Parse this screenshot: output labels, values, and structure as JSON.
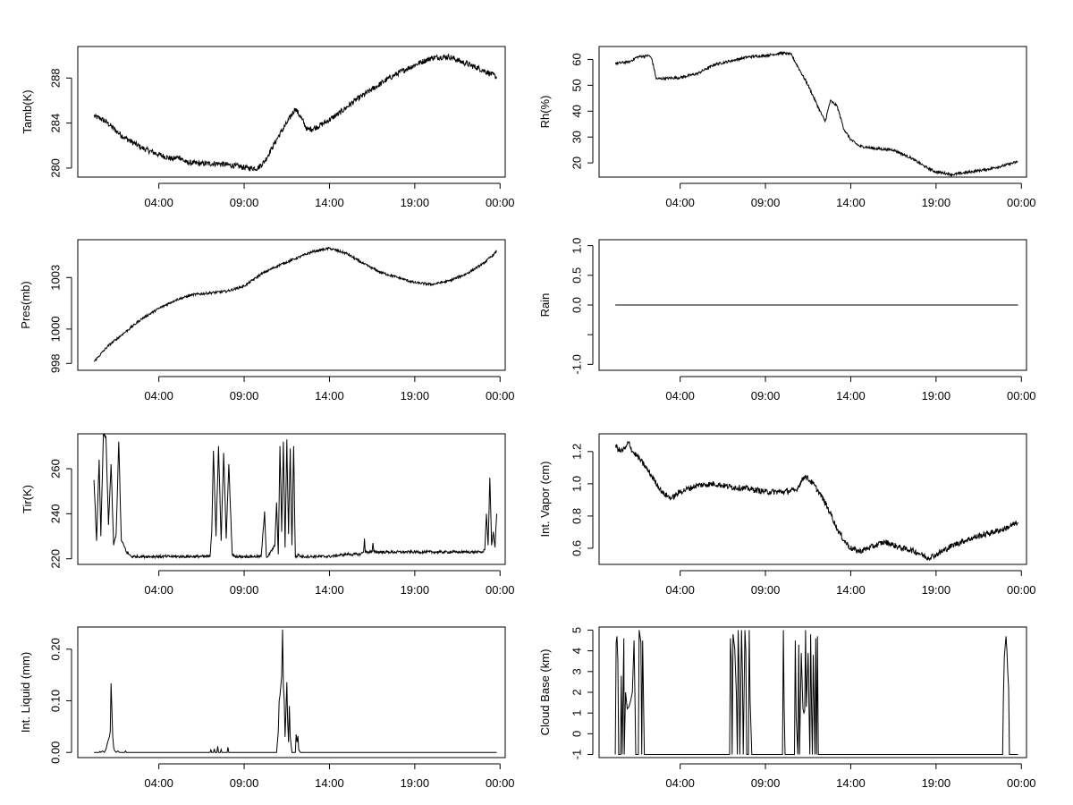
{
  "chart_data": [
    {
      "id": "tamb",
      "type": "line",
      "ylabel": "Tamb(K)",
      "ylim": [
        279.2,
        290.8
      ],
      "yticks": [
        280,
        284,
        288
      ],
      "xlim": [
        -0.75,
        24.3
      ],
      "xticks": [
        4,
        9,
        14,
        19,
        24
      ],
      "xticklabels": [
        "04:00",
        "09:00",
        "14:00",
        "19:00",
        "00:00"
      ],
      "series": [
        {
          "name": "Tamb",
          "noise": 0.25,
          "x": [
            0.2,
            0.6,
            1.0,
            1.5,
            2.0,
            3.0,
            4.0,
            4.8,
            5.2,
            5.6,
            6.5,
            7.5,
            8.5,
            9.2,
            9.8,
            10.2,
            10.6,
            11.0,
            11.5,
            12.0,
            12.4,
            12.7,
            13.2,
            13.8,
            14.5,
            15.5,
            16.5,
            17.5,
            18.5,
            19.2,
            20.0,
            21.0,
            22.0,
            23.0,
            23.8
          ],
          "y": [
            284.6,
            284.4,
            284.0,
            283.3,
            282.7,
            281.8,
            281.2,
            280.8,
            281.0,
            280.5,
            280.4,
            280.4,
            280.2,
            280.0,
            280.0,
            280.6,
            281.7,
            282.8,
            284.0,
            285.3,
            284.3,
            283.4,
            283.6,
            284.1,
            284.8,
            286.0,
            287.0,
            288.0,
            288.8,
            289.3,
            289.8,
            289.9,
            289.3,
            288.7,
            288.1
          ]
        }
      ]
    },
    {
      "id": "rh",
      "type": "line",
      "ylabel": "Rh(%)",
      "ylim": [
        14.5,
        65
      ],
      "yticks": [
        20,
        30,
        40,
        50,
        60
      ],
      "xlim": [
        -0.75,
        24.3
      ],
      "xticks": [
        4,
        9,
        14,
        19,
        24
      ],
      "xticklabels": [
        "04:00",
        "09:00",
        "14:00",
        "19:00",
        "00:00"
      ],
      "series": [
        {
          "name": "Rh",
          "noise": 0.5,
          "x": [
            0.2,
            1.0,
            1.5,
            2.2,
            2.35,
            2.6,
            4.0,
            5.0,
            6.0,
            8.0,
            9.0,
            10.0,
            10.5,
            11.0,
            11.5,
            12.2,
            12.5,
            12.8,
            13.2,
            13.6,
            14.0,
            14.5,
            15.5,
            16.5,
            17.5,
            18.5,
            19.0,
            20.0,
            21.0,
            22.0,
            23.0,
            23.8
          ],
          "y": [
            58.5,
            59,
            61,
            61.5,
            60,
            52.5,
            53,
            54.5,
            58,
            61,
            61.5,
            62.5,
            62,
            56,
            50,
            40,
            36,
            44,
            42,
            33,
            29,
            26.5,
            25.5,
            25,
            22,
            18,
            16.5,
            15.5,
            16.5,
            17.5,
            19,
            20.5
          ]
        }
      ]
    },
    {
      "id": "pres",
      "type": "line",
      "ylabel": "Pres(mb)",
      "ylim": [
        997.6,
        1005.2
      ],
      "yticks": [
        998,
        1000,
        1003
      ],
      "xlim": [
        -0.75,
        24.3
      ],
      "xticks": [
        4,
        9,
        14,
        19,
        24
      ],
      "xticklabels": [
        "04:00",
        "09:00",
        "14:00",
        "19:00",
        "00:00"
      ],
      "series": [
        {
          "name": "Pres",
          "noise": 0.07,
          "x": [
            0.2,
            1.0,
            2.0,
            3.0,
            4.0,
            5.0,
            6.0,
            7.0,
            8.0,
            9.0,
            10.0,
            11.0,
            12.0,
            13.0,
            14.0,
            15.0,
            16.0,
            17.0,
            18.0,
            19.0,
            20.0,
            21.0,
            22.0,
            23.0,
            23.8
          ],
          "y": [
            998.1,
            999.0,
            999.8,
            1000.6,
            1001.2,
            1001.7,
            1002.0,
            1002.1,
            1002.2,
            1002.5,
            1003.2,
            1003.7,
            1004.1,
            1004.5,
            1004.7,
            1004.4,
            1003.8,
            1003.3,
            1003.0,
            1002.7,
            1002.6,
            1002.8,
            1003.2,
            1003.8,
            1004.5
          ]
        }
      ]
    },
    {
      "id": "rain",
      "type": "line",
      "ylabel": "Rain",
      "ylim": [
        -1.1,
        1.1
      ],
      "yticks": [
        -1,
        -0.5,
        0,
        0.5,
        1
      ],
      "yticklabels": [
        "-1.0",
        "",
        "0.0",
        "0.5",
        "1.0"
      ],
      "xlim": [
        -0.75,
        24.3
      ],
      "xticks": [
        4,
        9,
        14,
        19,
        24
      ],
      "xticklabels": [
        "04:00",
        "09:00",
        "14:00",
        "19:00",
        "00:00"
      ],
      "series": [
        {
          "name": "Rain",
          "noise": 0,
          "x": [
            0.2,
            23.8
          ],
          "y": [
            0,
            0
          ]
        }
      ]
    },
    {
      "id": "tir",
      "type": "line",
      "ylabel": "Tir(K)",
      "ylim": [
        217.5,
        275.5
      ],
      "yticks": [
        220,
        240,
        260
      ],
      "xlim": [
        -0.75,
        24.3
      ],
      "xticks": [
        4,
        9,
        14,
        19,
        24
      ],
      "xticklabels": [
        "04:00",
        "09:00",
        "14:00",
        "19:00",
        "00:00"
      ],
      "series": [
        {
          "name": "Tir",
          "noise": 0.6,
          "x": [
            0.2,
            0.35,
            0.5,
            0.6,
            0.75,
            0.9,
            1.05,
            1.2,
            1.35,
            1.5,
            1.65,
            1.8,
            1.95,
            2.1,
            2.25,
            2.4,
            2.55,
            2.7,
            3.5,
            4.5,
            5.5,
            6.5,
            7.0,
            7.1,
            7.2,
            7.35,
            7.5,
            7.65,
            7.8,
            7.95,
            8.1,
            8.3,
            8.45,
            8.6,
            9.0,
            9.5,
            10.0,
            10.2,
            10.3,
            10.4,
            10.8,
            10.9,
            11.0,
            11.1,
            11.2,
            11.3,
            11.4,
            11.5,
            11.6,
            11.7,
            11.8,
            11.9,
            12.0,
            12.1,
            12.2,
            12.3,
            12.4,
            12.5,
            12.7,
            13.0,
            14.0,
            15.0,
            15.8,
            16.0,
            16.05,
            16.1,
            16.3,
            16.5,
            16.55,
            16.6,
            17.5,
            18.5,
            19.5,
            20.5,
            21.5,
            22.0,
            22.5,
            23.0,
            23.1,
            23.2,
            23.3,
            23.4,
            23.5,
            23.6,
            23.7,
            23.8
          ],
          "y": [
            255,
            228,
            264,
            230,
            275,
            274,
            235,
            262,
            226,
            231,
            272,
            228,
            226,
            223,
            222,
            221,
            221,
            221,
            221,
            221,
            221,
            221,
            221,
            232,
            268,
            230,
            270,
            228,
            267,
            229,
            262,
            222,
            221,
            221,
            221,
            221,
            221,
            241,
            221,
            221,
            226,
            245,
            222,
            270,
            232,
            272,
            225,
            273,
            231,
            269,
            226,
            270,
            221,
            221,
            222,
            221,
            221,
            221,
            221,
            221,
            221,
            222,
            222,
            223,
            229,
            223,
            223,
            223,
            227,
            223,
            223,
            223,
            223,
            223,
            223,
            223,
            223,
            223,
            224,
            240,
            226,
            256,
            226,
            232,
            225,
            240
          ]
        }
      ]
    },
    {
      "id": "vapor",
      "type": "line",
      "ylabel": "Int. Vapor (cm)",
      "ylim": [
        0.5,
        1.31
      ],
      "yticks": [
        0.6,
        0.8,
        1.0,
        1.2
      ],
      "yticklabels": [
        "0.6",
        "0.8",
        "1.0",
        "1.2"
      ],
      "xlim": [
        -0.75,
        24.3
      ],
      "xticks": [
        4,
        9,
        14,
        19,
        24
      ],
      "xticklabels": [
        "04:00",
        "09:00",
        "14:00",
        "19:00",
        "00:00"
      ],
      "series": [
        {
          "name": "Vapor",
          "noise": 0.018,
          "x": [
            0.2,
            0.5,
            0.8,
            1.0,
            1.2,
            1.5,
            2.0,
            2.5,
            3.0,
            3.5,
            4.0,
            5.0,
            6.0,
            7.0,
            8.0,
            9.0,
            10.0,
            10.8,
            11.3,
            11.8,
            12.3,
            12.8,
            13.2,
            13.6,
            14.0,
            14.5,
            15.0,
            15.5,
            16.0,
            16.5,
            17.0,
            17.5,
            18.0,
            18.5,
            19.0,
            20.0,
            21.0,
            22.0,
            23.0,
            23.8
          ],
          "y": [
            1.24,
            1.2,
            1.22,
            1.26,
            1.2,
            1.17,
            1.1,
            1.02,
            0.94,
            0.91,
            0.95,
            0.99,
            1.0,
            0.98,
            0.97,
            0.95,
            0.95,
            0.96,
            1.05,
            1.0,
            0.92,
            0.82,
            0.72,
            0.65,
            0.6,
            0.58,
            0.6,
            0.62,
            0.64,
            0.62,
            0.6,
            0.59,
            0.57,
            0.54,
            0.56,
            0.62,
            0.66,
            0.69,
            0.72,
            0.76
          ]
        }
      ]
    },
    {
      "id": "liquid",
      "type": "line",
      "ylabel": "Int. Liquid (mm)",
      "ylim": [
        -0.01,
        0.243
      ],
      "yticks": [
        0,
        0.1,
        0.2
      ],
      "yticklabels": [
        "0.00",
        "0.10",
        "0.20"
      ],
      "xlim": [
        -0.75,
        24.3
      ],
      "xticks": [
        4,
        9,
        14,
        19,
        24
      ],
      "xticklabels": [
        "04:00",
        "09:00",
        "14:00",
        "19:00",
        "00:00"
      ],
      "series": [
        {
          "name": "Liquid",
          "noise": 0,
          "x": [
            0.2,
            0.5,
            0.55,
            0.6,
            0.7,
            0.8,
            0.9,
            1.0,
            1.1,
            1.15,
            1.2,
            1.3,
            1.35,
            1.4,
            1.5,
            1.6,
            1.7,
            2.0,
            2.05,
            2.1,
            7.0,
            7.05,
            7.1,
            7.2,
            7.25,
            7.3,
            7.4,
            7.45,
            7.5,
            7.6,
            7.65,
            7.7,
            8.0,
            8.05,
            8.1,
            8.2,
            10.9,
            11.0,
            11.05,
            11.1,
            11.2,
            11.25,
            11.3,
            11.35,
            11.4,
            11.45,
            11.5,
            11.55,
            11.6,
            11.65,
            11.7,
            11.8,
            11.9,
            12.0,
            12.05,
            12.1,
            12.15,
            12.2,
            12.3,
            23.8
          ],
          "y": [
            0,
            0,
            0.002,
            0,
            0.003,
            0,
            0.006,
            0.02,
            0.03,
            0.04,
            0.134,
            0.03,
            0.01,
            0.004,
            0,
            0.003,
            0,
            0,
            0.003,
            0,
            0,
            0.005,
            0,
            0,
            0.007,
            0,
            0,
            0.012,
            0,
            0,
            0.006,
            0,
            0,
            0.01,
            0,
            0,
            0,
            0.04,
            0.1,
            0.11,
            0.148,
            0.238,
            0.13,
            0.1,
            0.03,
            0.08,
            0.136,
            0.06,
            0.02,
            0.09,
            0.03,
            0,
            0,
            0,
            0.035,
            0.02,
            0.032,
            0.005,
            0,
            0
          ]
        }
      ]
    },
    {
      "id": "cloudbase",
      "type": "line",
      "ylabel": "Cloud Base (km)",
      "ylim": [
        -1.15,
        5.15
      ],
      "yticks": [
        -1,
        0,
        1,
        2,
        3,
        4,
        5
      ],
      "xlim": [
        -0.75,
        24.3
      ],
      "xticks": [
        4,
        9,
        14,
        19,
        24
      ],
      "xticklabels": [
        "04:00",
        "09:00",
        "14:00",
        "19:00",
        "00:00"
      ],
      "series": [
        {
          "name": "CloudBase",
          "noise": 0,
          "x": [
            0.2,
            0.25,
            0.3,
            0.35,
            0.4,
            0.45,
            0.5,
            0.55,
            0.6,
            0.7,
            0.72,
            0.8,
            0.9,
            1.0,
            1.1,
            1.2,
            1.3,
            1.35,
            1.4,
            1.5,
            1.55,
            1.6,
            1.7,
            1.75,
            1.8,
            1.9,
            1.95,
            2.0,
            2.1,
            2.15,
            6.9,
            6.95,
            7.0,
            7.05,
            7.1,
            7.2,
            7.3,
            7.35,
            7.4,
            7.45,
            7.5,
            7.6,
            7.65,
            7.7,
            7.8,
            7.85,
            7.9,
            8.0,
            8.05,
            8.1,
            8.2,
            8.3,
            10.0,
            10.05,
            10.1,
            10.15,
            10.2,
            10.3,
            10.7,
            10.75,
            10.8,
            10.9,
            10.95,
            11.0,
            11.1,
            11.2,
            11.25,
            11.3,
            11.35,
            11.4,
            11.5,
            11.55,
            11.6,
            11.65,
            11.7,
            11.75,
            11.8,
            11.9,
            11.95,
            12.0,
            12.05,
            12.1,
            12.2,
            12.25,
            12.3,
            22.9,
            22.95,
            23.0,
            23.05,
            23.1,
            23.15,
            23.2,
            23.25,
            23.3,
            23.8
          ],
          "y": [
            -1,
            4.4,
            4.7,
            3.5,
            -1,
            -1,
            -1,
            2.8,
            -1,
            4.6,
            -1,
            2,
            1.2,
            1.3,
            1.6,
            2.0,
            4.5,
            1.8,
            -1,
            -1,
            -1,
            5,
            4.4,
            -1,
            4.5,
            -1,
            -1,
            -1,
            -1,
            -1,
            -1,
            4.6,
            3.5,
            -1,
            4.8,
            4.1,
            1.8,
            -1,
            5,
            3.2,
            -1,
            5,
            2.9,
            -1,
            5,
            4,
            -1,
            -1,
            5,
            1.6,
            -1,
            -1,
            -1,
            5,
            1.2,
            -1,
            -1,
            -1,
            -1,
            4.5,
            0.8,
            -1,
            4.3,
            -1,
            3.9,
            1.2,
            1,
            1.1,
            5,
            1.3,
            3.9,
            1.4,
            -1,
            4.8,
            1.2,
            -1,
            3.8,
            -1,
            4.6,
            -1,
            4.7,
            -1,
            -1,
            -1,
            -1,
            -1,
            1.8,
            3.7,
            4.2,
            4.7,
            4.0,
            3.0,
            2.2,
            -1,
            -1
          ]
        }
      ]
    }
  ]
}
